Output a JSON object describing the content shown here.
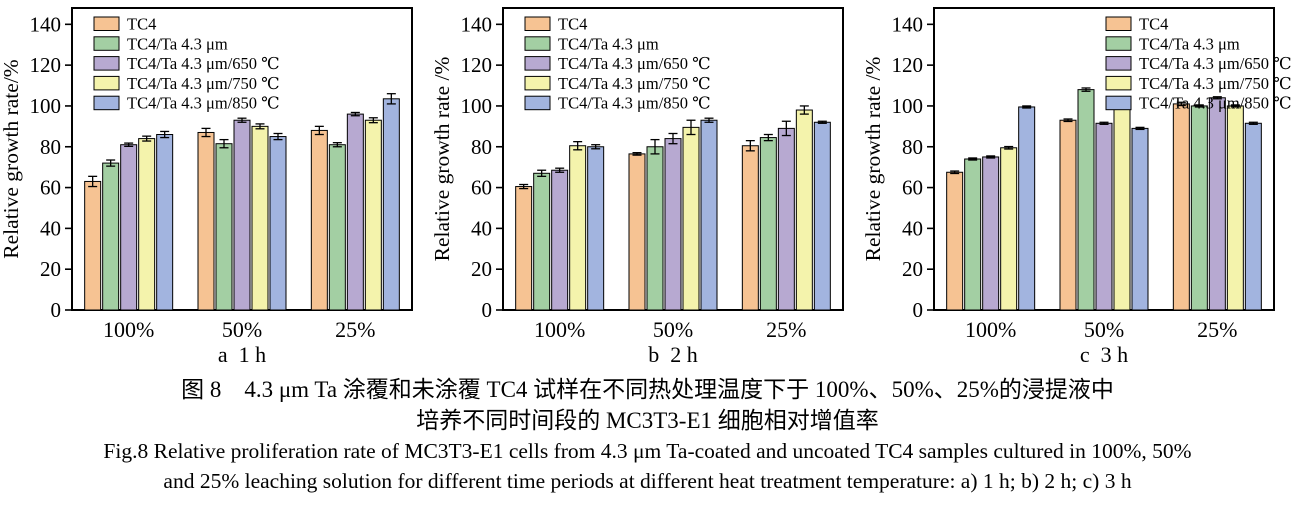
{
  "figure": {
    "caption_zh_line1": "图 8　4.3 μm Ta 涂覆和未涂覆 TC4 试样在不同热处理温度下于 100%、50%、25%的浸提液中",
    "caption_zh_line2": "培养不同时间段的 MC3T3-E1 细胞相对增值率",
    "caption_en_line1": "Fig.8 Relative proliferation rate of MC3T3-E1 cells from 4.3 μm Ta-coated and uncoated TC4 samples cultured in 100%, 50%",
    "caption_en_line2": "and 25% leaching solution for different time periods at different heat treatment temperature: a) 1 h; b) 2 h; c) 3 h"
  },
  "colors": {
    "tc4": "#F6C393",
    "tc4_ta": "#A3CFA3",
    "tc4_ta_650": "#B7A9D1",
    "tc4_ta_750": "#F4F3AC",
    "tc4_ta_850": "#A2B4DF",
    "axis": "#000000",
    "background": "#FFFFFF"
  },
  "chart_data": [
    {
      "type": "bar",
      "panel": "a",
      "sublabel": "a  1 h",
      "ylabel": "Relative growth rate/%",
      "xlabel": "",
      "categories": [
        "100%",
        "50%",
        "25%"
      ],
      "ylim": [
        0,
        148
      ],
      "yticks": [
        0,
        20,
        40,
        60,
        80,
        100,
        120,
        140
      ],
      "grid": false,
      "legend_position": "top-left",
      "series": [
        {
          "name": "TC4",
          "color": "#F6C393",
          "values": [
            63,
            87,
            88
          ],
          "errors": [
            2.5,
            2,
            2
          ]
        },
        {
          "name": "TC4/Ta 4.3 μm",
          "color": "#A3CFA3",
          "values": [
            72,
            81.5,
            81
          ],
          "errors": [
            1.5,
            2,
            1
          ]
        },
        {
          "name": "TC4/Ta 4.3 μm/650 ℃",
          "color": "#B7A9D1",
          "values": [
            81,
            93,
            96
          ],
          "errors": [
            0.8,
            1,
            0.8
          ]
        },
        {
          "name": "TC4/Ta 4.3 μm/750 ℃",
          "color": "#F4F3AC",
          "values": [
            84,
            90,
            93
          ],
          "errors": [
            1.2,
            1.2,
            1.2
          ]
        },
        {
          "name": "TC4/Ta 4.3 μm/850 ℃",
          "color": "#A2B4DF",
          "values": [
            86,
            85,
            103.5
          ],
          "errors": [
            1.5,
            1.5,
            2.5
          ]
        }
      ]
    },
    {
      "type": "bar",
      "panel": "b",
      "sublabel": "b  2 h",
      "ylabel": "Relative growth rate /%",
      "xlabel": "",
      "categories": [
        "100%",
        "50%",
        "25%"
      ],
      "ylim": [
        0,
        148
      ],
      "yticks": [
        0,
        20,
        40,
        60,
        80,
        100,
        120,
        140
      ],
      "grid": false,
      "legend_position": "top-left",
      "series": [
        {
          "name": "TC4",
          "color": "#F6C393",
          "values": [
            60.5,
            76.5,
            80.5
          ],
          "errors": [
            1,
            0.6,
            2.5
          ]
        },
        {
          "name": "TC4/Ta 4.3 μm",
          "color": "#A3CFA3",
          "values": [
            67,
            80,
            84.5
          ],
          "errors": [
            1.5,
            3.5,
            1.5
          ]
        },
        {
          "name": "TC4/Ta 4.3 μm/650 ℃",
          "color": "#B7A9D1",
          "values": [
            68.5,
            84,
            89
          ],
          "errors": [
            1,
            2.5,
            3.5
          ]
        },
        {
          "name": "TC4/Ta 4.3 μm/750 ℃",
          "color": "#F4F3AC",
          "values": [
            80.5,
            89.5,
            98
          ],
          "errors": [
            2,
            3.5,
            2
          ]
        },
        {
          "name": "TC4/Ta 4.3 μm/850 ℃",
          "color": "#A2B4DF",
          "values": [
            80,
            93,
            92
          ],
          "errors": [
            1,
            1,
            0.5
          ]
        }
      ]
    },
    {
      "type": "bar",
      "panel": "c",
      "sublabel": "c  3 h",
      "ylabel": "Relative growth rate /%",
      "xlabel": "",
      "categories": [
        "100%",
        "50%",
        "25%"
      ],
      "ylim": [
        0,
        148
      ],
      "yticks": [
        0,
        20,
        40,
        60,
        80,
        100,
        120,
        140
      ],
      "grid": false,
      "legend_position": "top-right",
      "series": [
        {
          "name": "TC4",
          "color": "#F6C393",
          "values": [
            67.5,
            93,
            101
          ],
          "errors": [
            0.6,
            0.6,
            0.8
          ]
        },
        {
          "name": "TC4/Ta 4.3 μm",
          "color": "#A3CFA3",
          "values": [
            74,
            108,
            100
          ],
          "errors": [
            0.5,
            0.8,
            0.5
          ]
        },
        {
          "name": "TC4/Ta 4.3 μm/650 ℃",
          "color": "#B7A9D1",
          "values": [
            75,
            91.5,
            104
          ],
          "errors": [
            0.5,
            0.5,
            0.5
          ]
        },
        {
          "name": "TC4/Ta 4.3 μm/750 ℃",
          "color": "#F4F3AC",
          "values": [
            79.5,
            102,
            100
          ],
          "errors": [
            0.6,
            0.5,
            0.5
          ]
        },
        {
          "name": "TC4/Ta 4.3 μm/850 ℃",
          "color": "#A2B4DF",
          "values": [
            99.5,
            89,
            91.5
          ],
          "errors": [
            0.5,
            0.5,
            0.5
          ]
        }
      ]
    }
  ]
}
